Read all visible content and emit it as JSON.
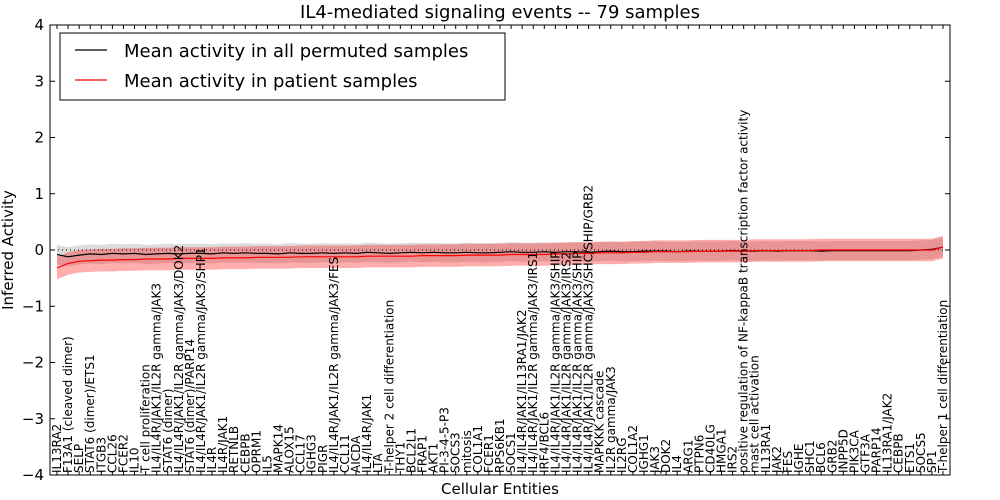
{
  "chart_data": {
    "type": "line",
    "title": "IL4-mediated signaling events -- 79 samples",
    "xlabel": "Cellular Entities",
    "ylabel": "Inferred Activity",
    "ylim": [
      -4,
      4
    ],
    "yticks": [
      -4,
      -3,
      -2,
      -1,
      0,
      1,
      2,
      3,
      4
    ],
    "legend_position": "top-left",
    "categories": [
      "IL13RA2",
      "F13A1 (cleaved dimer)",
      "SELP",
      "STAT6 (dimer)/ETS1",
      "ITGB3",
      "CCL26",
      "FCER2",
      "IL10",
      "T cell proliferation",
      "IL4/IL4R/JAK1/IL2R gamma/JAK3",
      "STAT6 (dimer)",
      "IL4/IL4R/JAK1/IL2R gamma/JAK3/DOK2",
      "STAT6 (dimer)/PARP14",
      "IL4/IL4R/JAK1/IL2R gamma/JAK3/SHP1",
      "IL4R",
      "IL4R/JAK1",
      "RETNLB",
      "CEBPB",
      "OPRM1",
      "IL5",
      "MAPK14",
      "ALOX15",
      "CCL17",
      "IGHG3",
      "PIGR",
      "IL4/IL4R/JAK1/IL2R gamma/JAK3/FES",
      "CCL11",
      "AICDA",
      "IL4/IL4R/JAK1",
      "LTA",
      "T-helper 2 cell differentiation",
      "THY1",
      "BCL2L1",
      "FRAP1",
      "AKT1",
      "PI-3-4-5-P3",
      "SOCS3",
      "mitosis",
      "COL1A1",
      "FCER1",
      "RPS6KB1",
      "SOCS1",
      "IL4/IL4R/JAK1/IL13RA1/JAK2",
      "IL4/IL4R/JAK1/IL2R gamma/JAK3/IRS1",
      "IRF4/BCL6",
      "IL4/IL4R/JAK1/IL2R gamma/JAK3/SHIP",
      "IL4/IL4R/JAK1/IL2R gamma/JAK3/IRS2",
      "IL4/IL4R/JAK1/IL2R gamma/JAK3/SHIP",
      "IL4/IL4R/JAK1/IL2R gamma/JAK3/SHC/SHIP/GRB2",
      "MAPKKK cascade",
      "IL2R gamma/JAK3",
      "IL2RG",
      "COL1A2",
      "IGHG1",
      "JAK3",
      "DOK2",
      "IL4",
      "ARG1",
      "PTPN6",
      "CD40LG",
      "HMGA1",
      "IRS2",
      "positive regulation of NF-kappaB transcription factor activity",
      "mast cell activation",
      "IL13RA1",
      "JAK2",
      "FES",
      "IGHE",
      "SHC1",
      "BCL6",
      "GRB2",
      "INPP5D",
      "PIK3CA",
      "GTF3A",
      "PARP14",
      "IL13RA1/JAK2",
      "CEBPB",
      "ETS1",
      "SOCS5",
      "SP1",
      "T-helper 1 cell differentiation"
    ],
    "series": [
      {
        "name": "Mean activity in all permuted samples",
        "color": "#000000",
        "values": [
          -0.08,
          -0.12,
          -0.09,
          -0.07,
          -0.08,
          -0.06,
          -0.07,
          -0.06,
          -0.08,
          -0.07,
          -0.06,
          -0.07,
          -0.06,
          -0.06,
          -0.07,
          -0.05,
          -0.06,
          -0.05,
          -0.06,
          -0.06,
          -0.07,
          -0.05,
          -0.06,
          -0.06,
          -0.05,
          -0.06,
          -0.05,
          -0.06,
          -0.04,
          -0.05,
          -0.06,
          -0.05,
          -0.04,
          -0.05,
          -0.04,
          -0.05,
          -0.05,
          -0.04,
          -0.05,
          -0.05,
          -0.04,
          -0.03,
          -0.04,
          -0.04,
          -0.03,
          -0.04,
          -0.03,
          -0.03,
          -0.04,
          -0.03,
          -0.02,
          -0.03,
          -0.03,
          -0.02,
          -0.02,
          -0.02,
          -0.03,
          -0.02,
          -0.02,
          -0.02,
          -0.02,
          -0.01,
          -0.02,
          -0.02,
          -0.01,
          -0.02,
          -0.01,
          -0.01,
          -0.01,
          -0.02,
          -0.01,
          -0.01,
          -0.01,
          -0.01,
          -0.01,
          -0.01,
          -0.01,
          -0.01,
          0.0,
          0.01,
          0.05
        ],
        "band": 0.17
      },
      {
        "name": "Mean activity in patient samples",
        "color": "#ff0000",
        "values": [
          -0.32,
          -0.24,
          -0.2,
          -0.19,
          -0.18,
          -0.18,
          -0.17,
          -0.17,
          -0.16,
          -0.16,
          -0.16,
          -0.15,
          -0.15,
          -0.15,
          -0.15,
          -0.14,
          -0.14,
          -0.14,
          -0.13,
          -0.13,
          -0.13,
          -0.13,
          -0.12,
          -0.12,
          -0.12,
          -0.12,
          -0.12,
          -0.12,
          -0.11,
          -0.11,
          -0.11,
          -0.11,
          -0.11,
          -0.1,
          -0.1,
          -0.1,
          -0.1,
          -0.09,
          -0.09,
          -0.09,
          -0.09,
          -0.08,
          -0.08,
          -0.08,
          -0.08,
          -0.07,
          -0.07,
          -0.06,
          -0.06,
          -0.05,
          -0.05,
          -0.05,
          -0.04,
          -0.04,
          -0.03,
          -0.03,
          -0.03,
          -0.03,
          -0.02,
          -0.02,
          -0.02,
          -0.02,
          -0.02,
          -0.01,
          -0.01,
          -0.01,
          -0.01,
          -0.01,
          -0.01,
          0.0,
          0.0,
          0.0,
          0.0,
          0.0,
          0.0,
          0.0,
          0.0,
          0.0,
          0.0,
          0.0,
          0.05
        ],
        "band": 0.2
      }
    ],
    "baseline": 0
  }
}
